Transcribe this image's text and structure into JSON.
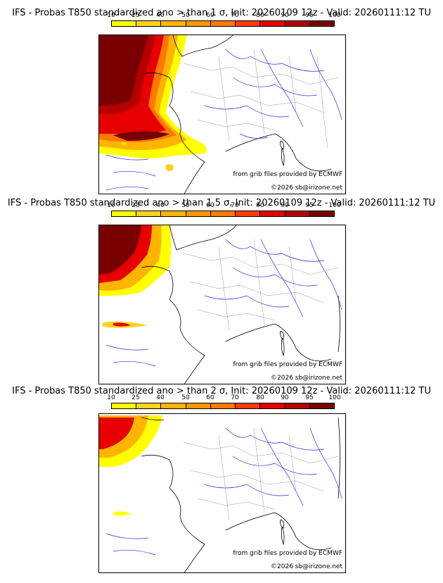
{
  "scale": {
    "labels": [
      "10",
      "25",
      "40",
      "50",
      "60",
      "70",
      "80",
      "90",
      "95",
      "100"
    ],
    "colors": [
      "#ffff00",
      "#ffd21e",
      "#ffb400",
      "#ff9600",
      "#ff7800",
      "#ff3c00",
      "#e60000",
      "#b40000",
      "#780000"
    ]
  },
  "panels": [
    {
      "title": "IFS - Probas T850  standardized ano > than 1 σ, Init: 20260109 12z - Valid: 20260111:12 TU",
      "credit": "from grib files provided by ECMWF",
      "copyright": "©2026 sb@irizone.net"
    },
    {
      "title": "IFS - Probas T850  standardized ano > than 1.5 σ, Init: 20260109 12z - Valid: 20260111:12 TU",
      "credit": "from grib files provided by ECMWF",
      "copyright": "©2026 sb@irizone.net"
    },
    {
      "title": "IFS - Probas T850  standardized ano > than 2 σ, Init: 20260109 12z - Valid: 20260111:12 TU",
      "credit": "from grib files provided by ECMWF",
      "copyright": "©2026 sb@irizone.net"
    }
  ]
}
